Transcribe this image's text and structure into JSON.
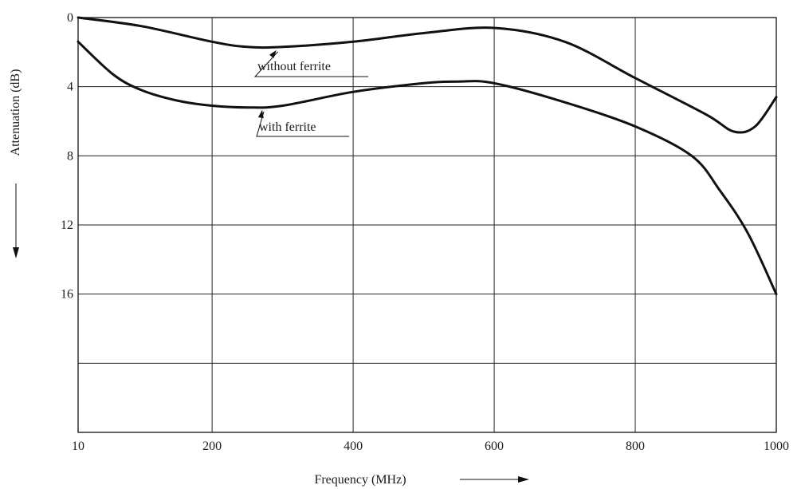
{
  "chart_data": {
    "type": "line",
    "title": "",
    "xlabel": "Frequency (MHz)",
    "ylabel": "Attenuation (dB)",
    "x_ticks": [
      10,
      200,
      400,
      600,
      800,
      1000
    ],
    "y_ticks": [
      0,
      4,
      8,
      12,
      16
    ],
    "xlim": [
      10,
      1000
    ],
    "ylim": [
      0,
      24
    ],
    "y_inverted": true,
    "grid": true,
    "series": [
      {
        "name": "without ferrite",
        "x": [
          10,
          100,
          200,
          250,
          300,
          400,
          500,
          600,
          700,
          800,
          900,
          940,
          970,
          1000
        ],
        "y": [
          0,
          0.5,
          1.4,
          1.7,
          1.7,
          1.4,
          0.9,
          0.6,
          1.4,
          3.5,
          5.6,
          6.6,
          6.3,
          4.6
        ]
      },
      {
        "name": "with ferrite",
        "x": [
          10,
          60,
          100,
          150,
          200,
          250,
          300,
          400,
          500,
          550,
          600,
          700,
          800,
          880,
          920,
          960,
          1000
        ],
        "y": [
          1.4,
          3.3,
          4.2,
          4.8,
          5.1,
          5.2,
          5.1,
          4.3,
          3.8,
          3.7,
          3.8,
          4.9,
          6.3,
          8.0,
          10.0,
          12.5,
          16.0
        ]
      }
    ]
  }
}
